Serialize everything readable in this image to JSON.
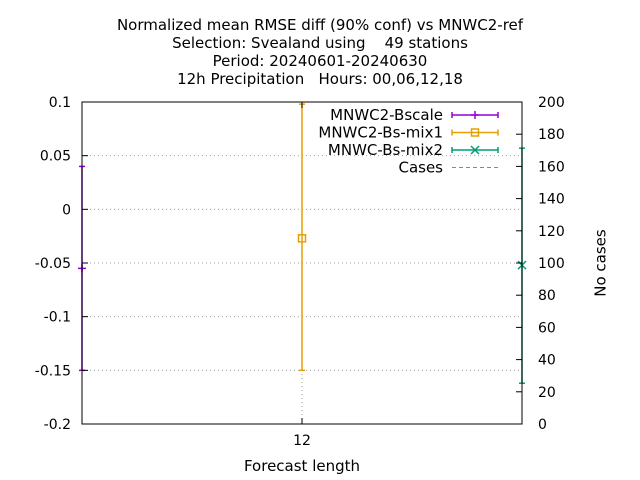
{
  "chart_data": {
    "type": "errorbar",
    "title_lines": [
      "Normalized mean RMSE diff (90% conf) vs MNWC2-ref",
      "Selection: Svealand using    49 stations",
      "Period: 20240601-20240630",
      "12h Precipitation   Hours: 00,06,12,18"
    ],
    "xlabel": "Forecast length",
    "ylabel": "",
    "y2label": "No cases",
    "x_ticks": [
      {
        "value": 12,
        "label": "12"
      }
    ],
    "xlim": [
      10,
      14
    ],
    "ylim": [
      -0.2,
      0.1
    ],
    "y_ticks": [
      {
        "value": 0.1,
        "label": "0.1"
      },
      {
        "value": 0.05,
        "label": "0.05"
      },
      {
        "value": 0,
        "label": "0"
      },
      {
        "value": -0.05,
        "label": "-0.05"
      },
      {
        "value": -0.1,
        "label": "-0.1"
      },
      {
        "value": -0.15,
        "label": "-0.15"
      },
      {
        "value": -0.2,
        "label": "-0.2"
      }
    ],
    "y2lim": [
      0,
      200
    ],
    "y2_ticks": [
      {
        "value": 200,
        "label": "200"
      },
      {
        "value": 180,
        "label": "180"
      },
      {
        "value": 160,
        "label": "160"
      },
      {
        "value": 140,
        "label": "140"
      },
      {
        "value": 120,
        "label": "120"
      },
      {
        "value": 100,
        "label": "100"
      },
      {
        "value": 80,
        "label": "80"
      },
      {
        "value": 60,
        "label": "60"
      },
      {
        "value": 40,
        "label": "40"
      },
      {
        "value": 20,
        "label": "20"
      },
      {
        "value": 0,
        "label": "0"
      }
    ],
    "grid": true,
    "legend_position": "top-right",
    "series": [
      {
        "name": "MNWC2-Bscale",
        "color": "#9400d3",
        "marker": "plus",
        "x": 10,
        "y": -0.055,
        "low": -0.15,
        "high": 0.04
      },
      {
        "name": "MNWC2-Bs-mix1",
        "color": "#e69f00",
        "marker": "square",
        "x": 12,
        "y": -0.027,
        "low": -0.15,
        "high": 0.098
      },
      {
        "name": "MNWC-Bs-mix2",
        "color": "#009e73",
        "marker": "x",
        "x": 14,
        "y": -0.052,
        "low": -0.162,
        "high": 0.057
      },
      {
        "name": "Cases",
        "color": "#888888",
        "marker": "none",
        "dashed": true,
        "axis": "y2",
        "x": [],
        "values": []
      }
    ]
  }
}
